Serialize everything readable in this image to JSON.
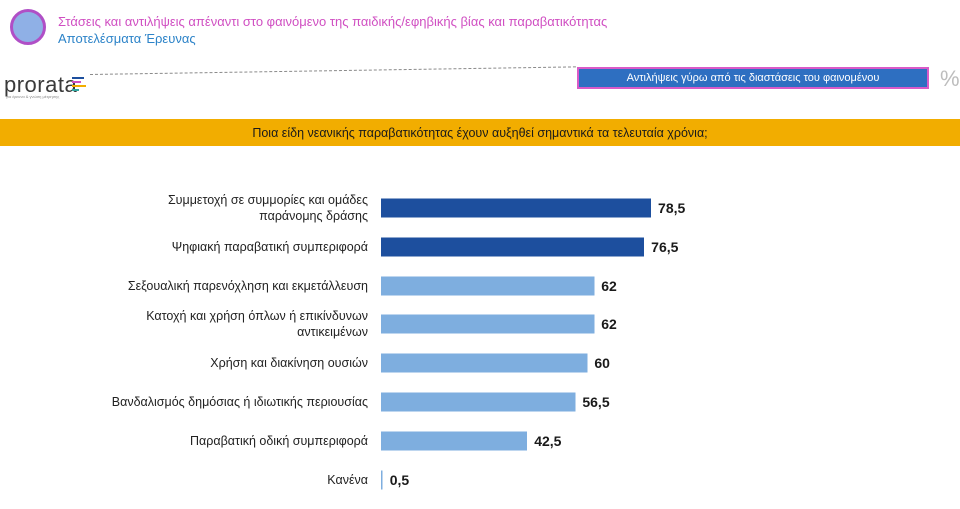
{
  "header": {
    "title": "Στάσεις και αντιλήψεις απέναντι στο φαινόμενο της παιδικής/εφηβικής βίας και παραβατικότητας",
    "subtitle": "Αποτελέσματα Έρευνας"
  },
  "logo": {
    "name": "prorata",
    "tagline": "για έρευνα & γνώση μέτρησης"
  },
  "section_label": "Αντιλήψεις γύρω από τις διαστάσεις του φαινομένου",
  "unit_symbol": "%",
  "colors": {
    "dark_bar": "#1d4f9e",
    "light_bar": "#7eaedf",
    "banner": "#f2ad00",
    "accent": "#d04fc2"
  },
  "chart_data": {
    "type": "bar",
    "orientation": "horizontal",
    "title": "Ποια είδη νεανικής παραβατικότητας έχουν αυξηθεί σημαντικά τα τελευταία χρόνια;",
    "categories": [
      "Συμμετοχή σε συμμορίες και ομάδες παράνομης δράσης",
      "Ψηφιακή παραβατική συμπεριφορά",
      "Σεξουαλική παρενόχληση και εκμετάλλευση",
      "Κατοχή και χρήση όπλων ή επικίνδυνων αντικειμένων",
      "Χρήση και διακίνηση ουσιών",
      "Βανδαλισμός δημόσιας ή ιδιωτικής περιουσίας",
      "Παραβατική οδική συμπεριφορά",
      "Κανένα"
    ],
    "category_lines": [
      [
        "Συμμετοχή σε συμμορίες και ομάδες",
        "παράνομης δράσης"
      ],
      [
        "Ψηφιακή παραβατική συμπεριφορά"
      ],
      [
        "Σεξουαλική παρενόχληση και εκμετάλλευση"
      ],
      [
        "Κατοχή και χρήση όπλων ή επικίνδυνων",
        "αντικειμένων"
      ],
      [
        "Χρήση και διακίνηση ουσιών"
      ],
      [
        "Βανδαλισμός δημόσιας ή ιδιωτικής περιουσίας"
      ],
      [
        "Παραβατική οδική συμπεριφορά"
      ],
      [
        "Κανένα"
      ]
    ],
    "values": [
      78.5,
      76.5,
      62,
      62,
      60,
      56.5,
      42.5,
      0.5
    ],
    "value_labels": [
      "78,5",
      "76,5",
      "62",
      "62",
      "60",
      "56,5",
      "42,5",
      "0,5"
    ],
    "highlighted": [
      true,
      true,
      false,
      false,
      false,
      false,
      false,
      false
    ],
    "xlim": [
      0,
      100
    ],
    "grid": false,
    "legend": "none"
  }
}
